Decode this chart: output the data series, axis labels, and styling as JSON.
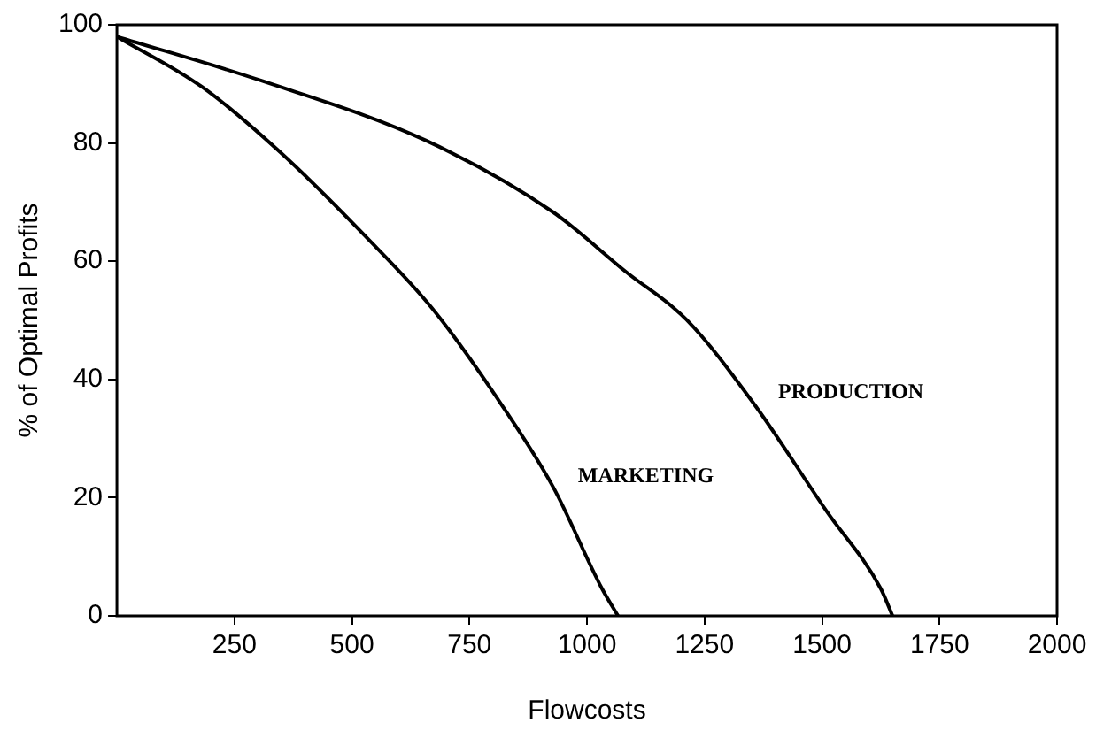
{
  "chart_data": {
    "type": "line",
    "xlabel": "Flowcosts",
    "ylabel": "% of Optimal Profits",
    "xlim": [
      0,
      2000
    ],
    "xticks": [
      250,
      500,
      750,
      1000,
      1250,
      1500,
      1750,
      2000
    ],
    "ylim": [
      0,
      100
    ],
    "yticks": [
      0,
      20,
      40,
      60,
      80,
      100
    ],
    "marker": "none",
    "line_style": "solid",
    "legend": false,
    "series": [
      {
        "name": "MARKETING",
        "color": "#000000",
        "x": [
          0,
          181,
          348,
          529,
          670,
          799,
          928,
          1032,
          1066
        ],
        "values": [
          98,
          89.5,
          78.4,
          64.2,
          52.1,
          38,
          21.8,
          4.6,
          0
        ]
      },
      {
        "name": "PRODUCTION",
        "color": "#000000",
        "x": [
          0,
          309,
          658,
          928,
          1083,
          1212,
          1354,
          1509,
          1625,
          1650
        ],
        "values": [
          98,
          90.5,
          80.4,
          68.3,
          58.2,
          50.1,
          36,
          17.8,
          4.6,
          0
        ]
      }
    ]
  }
}
